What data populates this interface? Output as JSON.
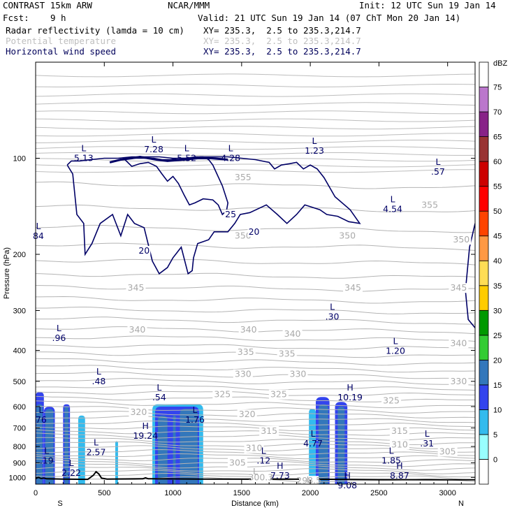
{
  "header": {
    "model": "CONTRAST 15km ARW",
    "org": "NCAR/MMM",
    "init": "Init: 12 UTC Sun 19 Jan 14",
    "fcst_label": "Fcst:",
    "fcst_value": "9 h",
    "valid": "Valid: 21 UTC Sun 19 Jan 14 (07 ChT Mon 20 Jan 14)",
    "fields": [
      {
        "name": "Radar reflectivity (lamda = 10 cm)",
        "xy": "XY= 235.3,  2.5 to 235.3,214.7",
        "color": "#000000"
      },
      {
        "name": "Potential temperature",
        "xy": "XY= 235.3,  2.5 to 235.3,214.7",
        "color": "#bfbfbf"
      },
      {
        "name": "Horizontal wind speed",
        "xy": "XY= 235.3,  2.5 to 235.3,214.7",
        "color": "#00005a"
      }
    ]
  },
  "chart_data": {
    "type": "heatmap",
    "title": "",
    "xlabel": "Distance (km)",
    "ylabel": "Pressure (hPa)",
    "xlim": [
      0,
      3200
    ],
    "ylim": [
      1050,
      50
    ],
    "y_scale": "log",
    "x_ticks": [
      0,
      500,
      1000,
      1500,
      2000,
      2500,
      3000
    ],
    "y_ticks": [
      100,
      200,
      300,
      400,
      500,
      600,
      700,
      800,
      900,
      1000
    ],
    "x_end_labels": {
      "left": "S",
      "right": "N"
    },
    "colorbar": {
      "unit": "dBZ",
      "levels": [
        0,
        5,
        10,
        15,
        20,
        25,
        30,
        35,
        40,
        45,
        50,
        55,
        60,
        65,
        70,
        75
      ],
      "colors": [
        "#ffffff",
        "#99ffff",
        "#33bbee",
        "#3344ee",
        "#3377bb",
        "#33cc33",
        "#009900",
        "#ffcc00",
        "#ffdd55",
        "#ff9944",
        "#ff4400",
        "#ff0000",
        "#cc0000",
        "#993333",
        "#882288",
        "#bb77cc",
        "#ffffff"
      ]
    },
    "reflectivity_columns": [
      {
        "x0": 0,
        "x1": 60,
        "ptop": 540,
        "dbz": 10
      },
      {
        "x0": 5,
        "x1": 50,
        "ptop": 590,
        "dbz": 15
      },
      {
        "x0": 60,
        "x1": 140,
        "ptop": 600,
        "dbz": 10
      },
      {
        "x0": 70,
        "x1": 130,
        "ptop": 610,
        "dbz": 15
      },
      {
        "x0": 200,
        "x1": 250,
        "ptop": 590,
        "dbz": 10
      },
      {
        "x0": 210,
        "x1": 240,
        "ptop": 600,
        "dbz": 15
      },
      {
        "x0": 310,
        "x1": 360,
        "ptop": 640,
        "dbz": 5
      },
      {
        "x0": 580,
        "x1": 600,
        "ptop": 770,
        "dbz": 5
      },
      {
        "x0": 850,
        "x1": 1220,
        "ptop": 590,
        "dbz": 5
      },
      {
        "x0": 870,
        "x1": 1190,
        "ptop": 600,
        "dbz": 10
      },
      {
        "x0": 890,
        "x1": 960,
        "ptop": 640,
        "dbz": 15
      },
      {
        "x0": 1050,
        "x1": 1180,
        "ptop": 610,
        "dbz": 15
      },
      {
        "x0": 1000,
        "x1": 1020,
        "ptop": 640,
        "dbz": 15
      },
      {
        "x0": 1990,
        "x1": 2040,
        "ptop": 610,
        "dbz": 5
      },
      {
        "x0": 2040,
        "x1": 2140,
        "ptop": 560,
        "dbz": 10
      },
      {
        "x0": 2060,
        "x1": 2130,
        "ptop": 590,
        "dbz": 15
      },
      {
        "x0": 2180,
        "x1": 2270,
        "ptop": 580,
        "dbz": 10
      },
      {
        "x0": 2200,
        "x1": 2250,
        "ptop": 600,
        "dbz": 15
      }
    ],
    "theta_contour_labels": [
      {
        "text": "355",
        "x": 1510,
        "p": 115
      },
      {
        "text": "355",
        "x": 2870,
        "p": 140
      },
      {
        "text": "350",
        "x": 1510,
        "p": 175
      },
      {
        "text": "350",
        "x": 2270,
        "p": 175
      },
      {
        "text": "350",
        "x": 3100,
        "p": 180
      },
      {
        "text": "345",
        "x": 730,
        "p": 255
      },
      {
        "text": "345",
        "x": 2310,
        "p": 255
      },
      {
        "text": "345",
        "x": 3080,
        "p": 255
      },
      {
        "text": "340",
        "x": 740,
        "p": 345
      },
      {
        "text": "340",
        "x": 1550,
        "p": 345
      },
      {
        "text": "340",
        "x": 1870,
        "p": 355
      },
      {
        "text": "340",
        "x": 3080,
        "p": 380
      },
      {
        "text": "335",
        "x": 1530,
        "p": 405
      },
      {
        "text": "335",
        "x": 1830,
        "p": 410
      },
      {
        "text": "330",
        "x": 1510,
        "p": 475
      },
      {
        "text": "330",
        "x": 1910,
        "p": 475
      },
      {
        "text": "330",
        "x": 3080,
        "p": 500
      },
      {
        "text": "325",
        "x": 1360,
        "p": 550
      },
      {
        "text": "325",
        "x": 1770,
        "p": 550
      },
      {
        "text": "325",
        "x": 2590,
        "p": 575
      },
      {
        "text": "320",
        "x": 750,
        "p": 625
      },
      {
        "text": "320",
        "x": 1540,
        "p": 635
      },
      {
        "text": "315",
        "x": 1700,
        "p": 715
      },
      {
        "text": "315",
        "x": 2650,
        "p": 715
      },
      {
        "text": "310",
        "x": 1590,
        "p": 810
      },
      {
        "text": "310",
        "x": 2650,
        "p": 790
      },
      {
        "text": "305",
        "x": 1470,
        "p": 900
      },
      {
        "text": "305",
        "x": 3000,
        "p": 830
      },
      {
        "text": "300.3",
        "x": 1640,
        "p": 1000
      },
      {
        "text": "298.5",
        "x": 1990,
        "p": 1025
      }
    ],
    "theta_extrema": [
      {
        "type": "L",
        "value": "300.3",
        "x": 1600,
        "p": 960
      },
      {
        "type": "L",
        "value": "298.5",
        "x": 1990,
        "p": 1020
      }
    ],
    "wind_contour_levels": [
      20,
      25
    ],
    "wind_contour_labels": [
      {
        "text": "25",
        "x": 1420,
        "p": 150
      },
      {
        "text": "20",
        "x": 1590,
        "p": 170
      },
      {
        "text": "20",
        "x": 790,
        "p": 195
      }
    ],
    "wind_extrema": [
      {
        "type": "L",
        "value": "5.13",
        "x": 350,
        "p": 97
      },
      {
        "type": "L",
        "value": "7.28",
        "x": 860,
        "p": 91
      },
      {
        "type": "L",
        "value": "5.52",
        "x": 1100,
        "p": 97
      },
      {
        "type": "L",
        "value": "4.28",
        "x": 1420,
        "p": 97
      },
      {
        "type": "L",
        "value": "1.23",
        "x": 2030,
        "p": 92
      },
      {
        "type": "L",
        "value": ".57",
        "x": 2930,
        "p": 107
      },
      {
        "type": "L",
        "value": "4.54",
        "x": 2600,
        "p": 140
      },
      {
        "type": "L",
        "value": "84",
        "x": 20,
        "p": 170
      },
      {
        "type": "L",
        "value": ".30",
        "x": 2160,
        "p": 305
      },
      {
        "type": "L",
        "value": ".96",
        "x": 170,
        "p": 355
      },
      {
        "type": "L",
        "value": "1.20",
        "x": 2620,
        "p": 390
      },
      {
        "type": "L",
        "value": ".48",
        "x": 460,
        "p": 485
      },
      {
        "type": "L",
        "value": ".54",
        "x": 900,
        "p": 545
      },
      {
        "type": "H",
        "value": "10.19",
        "x": 2290,
        "p": 545
      },
      {
        "type": "L",
        "value": "76",
        "x": 40,
        "p": 640
      },
      {
        "type": "L",
        "value": "1.76",
        "x": 1160,
        "p": 640
      },
      {
        "type": "H",
        "value": "19.24",
        "x": 800,
        "p": 720
      },
      {
        "type": "L",
        "value": "4.77",
        "x": 2020,
        "p": 760
      },
      {
        "type": "L",
        "value": ".31",
        "x": 2850,
        "p": 760
      },
      {
        "type": "L",
        "value": "2.57",
        "x": 440,
        "p": 810
      },
      {
        "type": "L",
        "value": ".12",
        "x": 1660,
        "p": 860
      },
      {
        "type": "L",
        "value": "1.85",
        "x": 2590,
        "p": 860
      },
      {
        "type": "L",
        "value": ".19",
        "x": 80,
        "p": 860
      },
      {
        "type": "L",
        "value": "2.22",
        "x": 260,
        "p": 940
      },
      {
        "type": "H",
        "value": "7.73",
        "x": 1780,
        "p": 960
      },
      {
        "type": "H",
        "value": "8.87",
        "x": 2650,
        "p": 960
      },
      {
        "type": "H",
        "value": "9.08",
        "x": 2270,
        "p": 1030
      }
    ],
    "terrain_surface_pressure": [
      [
        0,
        1008
      ],
      [
        20,
        1000
      ],
      [
        40,
        1008
      ],
      [
        60,
        1005
      ],
      [
        80,
        1010
      ],
      [
        200,
        1012
      ],
      [
        380,
        1014
      ],
      [
        420,
        985
      ],
      [
        440,
        960
      ],
      [
        460,
        975
      ],
      [
        480,
        1005
      ],
      [
        520,
        1012
      ],
      [
        780,
        1010
      ],
      [
        800,
        1003
      ],
      [
        820,
        1010
      ],
      [
        1200,
        1012
      ],
      [
        1600,
        1013
      ],
      [
        2000,
        1013
      ],
      [
        2500,
        1016
      ],
      [
        3000,
        1017
      ],
      [
        3200,
        1017
      ]
    ]
  }
}
